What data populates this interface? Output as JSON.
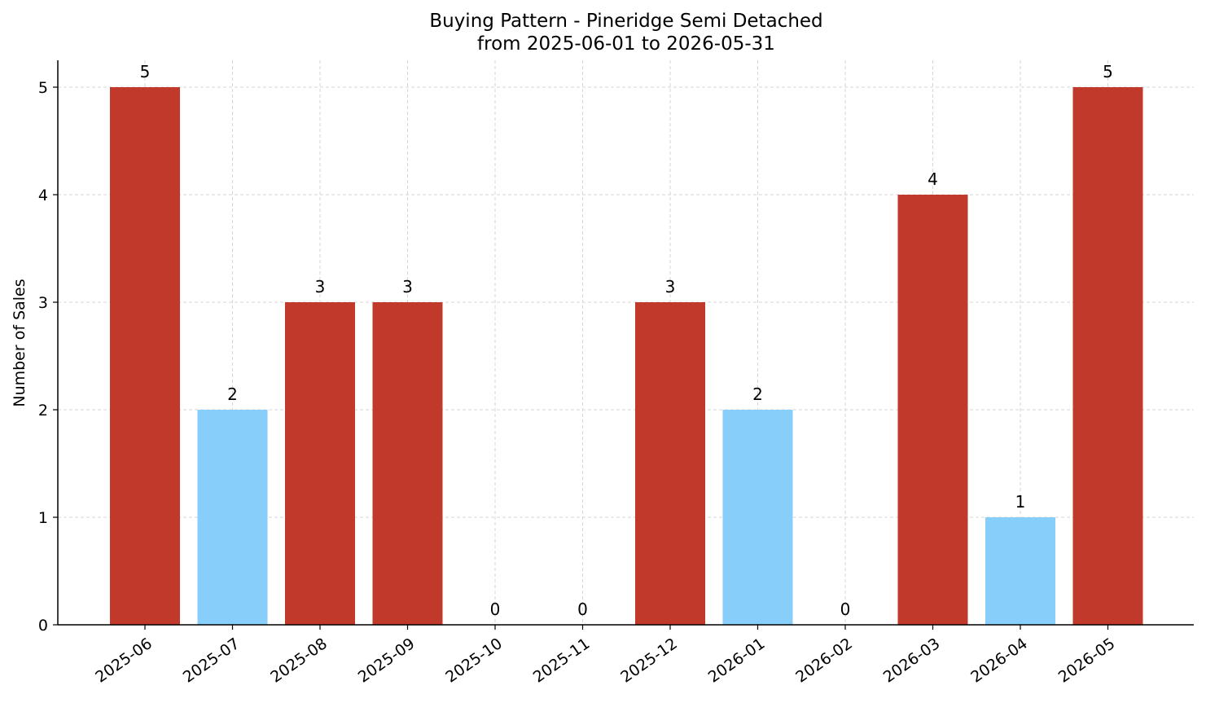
{
  "chart_data": {
    "type": "bar",
    "title_line1": "Buying Pattern - Pineridge Semi Detached",
    "title_line2": "from 2025-06-01 to 2026-05-31",
    "xlabel": "",
    "ylabel": "Number of Sales",
    "ylim": [
      0,
      5.25
    ],
    "yticks": [
      0,
      1,
      2,
      3,
      4,
      5
    ],
    "grid": true,
    "categories": [
      "2025-06",
      "2025-07",
      "2025-08",
      "2025-09",
      "2025-10",
      "2025-11",
      "2025-12",
      "2026-01",
      "2026-02",
      "2026-03",
      "2026-04",
      "2026-05"
    ],
    "values": [
      5,
      2,
      3,
      3,
      0,
      0,
      3,
      2,
      0,
      4,
      1,
      5
    ],
    "colors": {
      "high": "#c0392b",
      "low": "#87cefa"
    },
    "bar_colors": [
      "high",
      "low",
      "high",
      "high",
      "high",
      "high",
      "high",
      "low",
      "high",
      "high",
      "low",
      "high"
    ]
  }
}
